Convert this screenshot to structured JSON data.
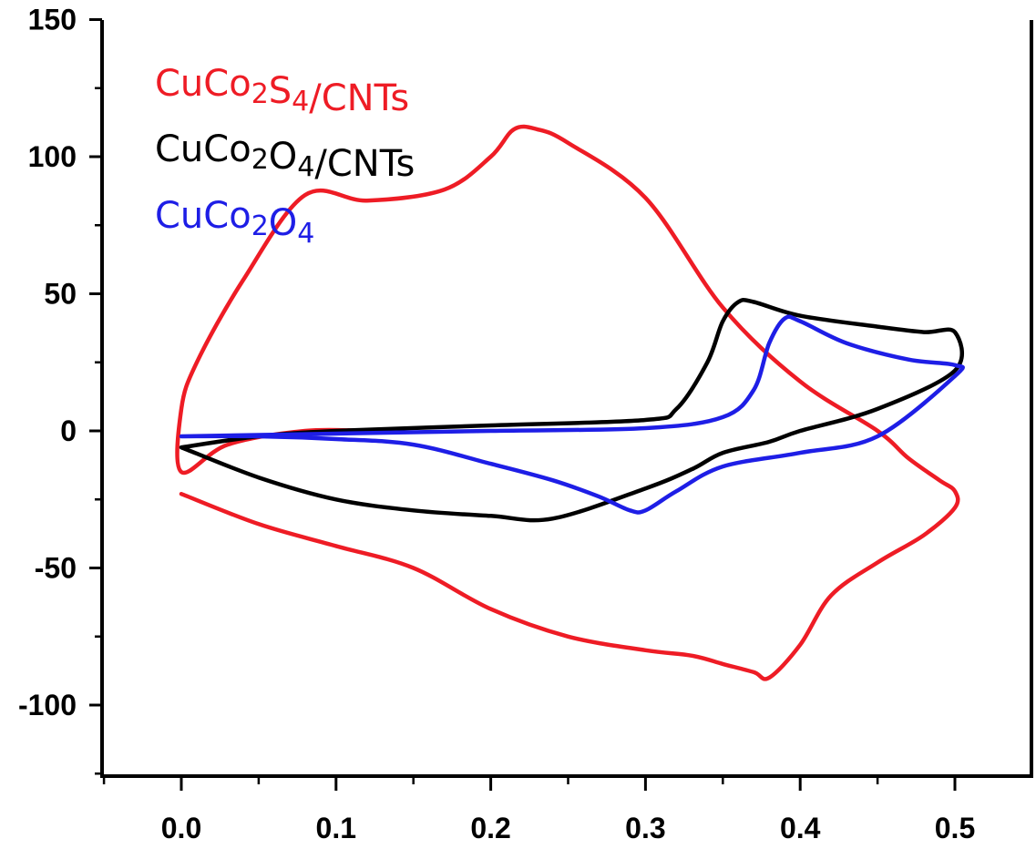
{
  "chart_data": {
    "type": "line",
    "title": "",
    "xlabel": "",
    "ylabel": "",
    "xlim": [
      -0.05,
      0.55
    ],
    "ylim": [
      -125,
      150
    ],
    "x_ticks": [
      0.0,
      0.1,
      0.2,
      0.3,
      0.4,
      0.5
    ],
    "x_tick_labels": [
      "0.0",
      "0.1",
      "0.2",
      "0.3",
      "0.4",
      "0.5"
    ],
    "y_ticks": [
      -100,
      -50,
      0,
      50,
      100,
      150
    ],
    "y_tick_labels": [
      "-100",
      "-50",
      "0",
      "50",
      "100",
      "150"
    ],
    "grid": false,
    "legend_position": "top-left",
    "series": [
      {
        "name": "CuCo2S4/CNTs",
        "legend_main": "CuCo",
        "legend_sub1": "2",
        "legend_mid": "S",
        "legend_sub2": "4",
        "legend_tail": "/CNTs",
        "color": "#ee1c25",
        "x": [
          0.0,
          0.05,
          0.1,
          0.15,
          0.2,
          0.25,
          0.3,
          0.33,
          0.35,
          0.37,
          0.38,
          0.4,
          0.42,
          0.45,
          0.48,
          0.5,
          0.5,
          0.49,
          0.47,
          0.45,
          0.4,
          0.35,
          0.3,
          0.25,
          0.23,
          0.215,
          0.2,
          0.17,
          0.12,
          0.08,
          0.04,
          0.01,
          0.0,
          0.0,
          0.03,
          0.08,
          0.12
        ],
        "y": [
          -23,
          -34,
          -42,
          -50,
          -65,
          -75,
          -80,
          -82,
          -85,
          -88,
          -90,
          -78,
          -60,
          -48,
          -38,
          -28,
          -22,
          -18,
          -10,
          0,
          18,
          45,
          85,
          105,
          110,
          110,
          100,
          88,
          84,
          86,
          55,
          25,
          8,
          -15,
          -5,
          0,
          0
        ],
        "point_order_note": ""
      },
      {
        "name": "CuCo2O4/CNTs",
        "legend_main": "CuCo",
        "legend_sub1": "2",
        "legend_mid": "O",
        "legend_sub2": "4",
        "legend_tail": "/CNTs",
        "color": "#000000",
        "x": [
          0.0,
          0.05,
          0.1,
          0.15,
          0.2,
          0.24,
          0.3,
          0.33,
          0.35,
          0.38,
          0.4,
          0.45,
          0.5,
          0.5,
          0.48,
          0.45,
          0.4,
          0.37,
          0.36,
          0.35,
          0.34,
          0.32,
          0.3,
          0.2,
          0.1,
          0.05,
          0.0
        ],
        "y": [
          -6,
          -17,
          -25,
          -29,
          -31,
          -32,
          -21,
          -14,
          -8,
          -4,
          0,
          8,
          22,
          36,
          36,
          38,
          42,
          47,
          47,
          40,
          25,
          8,
          4,
          2,
          0,
          -2,
          -6
        ]
      },
      {
        "name": "CuCo2O4",
        "legend_main": "CuCo",
        "legend_sub1": "2",
        "legend_mid": "O",
        "legend_sub2": "4",
        "legend_tail": "",
        "color": "#1e1ee6",
        "x": [
          0.0,
          0.05,
          0.1,
          0.15,
          0.2,
          0.24,
          0.27,
          0.29,
          0.3,
          0.32,
          0.35,
          0.4,
          0.45,
          0.5,
          0.5,
          0.47,
          0.43,
          0.4,
          0.39,
          0.38,
          0.37,
          0.35,
          0.3,
          0.2,
          0.1,
          0.0
        ],
        "y": [
          -2,
          -2,
          -3,
          -5,
          -12,
          -18,
          -24,
          -29,
          -29,
          -22,
          -13,
          -8,
          -2,
          20,
          24,
          26,
          32,
          40,
          41,
          32,
          15,
          5,
          1,
          0,
          -1,
          -2
        ]
      }
    ]
  }
}
